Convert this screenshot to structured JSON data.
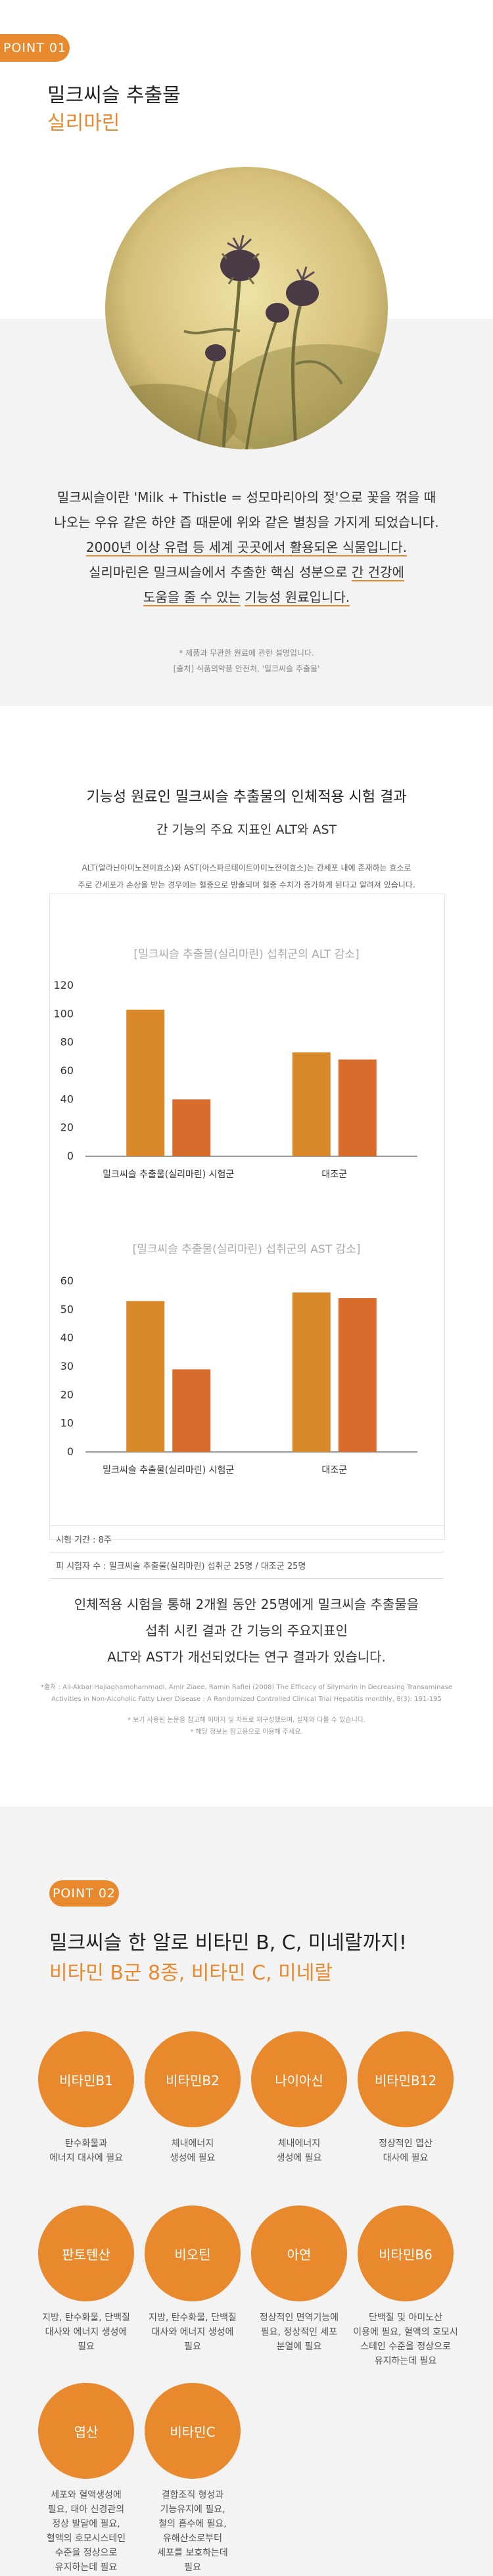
{
  "colors": {
    "accent": "#e8892d",
    "bar_dark": "#d9882a",
    "bar_light": "#d86c2d",
    "section_bg": "#f3f3f3"
  },
  "point1": {
    "badge": "POINT 01",
    "title1": "밀크씨슬 추출물",
    "title2": "실리마린",
    "p1": "밀크씨슬이란 'Milk + Thistle = 성모마리아의 젖'으로 꽃을 꺾을 때",
    "p2": "나오는 우유 같은 하얀 즙 때문에 위와 같은 별칭을 가지게 되었습니다.",
    "p3": "2000년 이상 유럽 등 세계 곳곳에서 활용되온 식물입니다.",
    "p4a": "실리마린은 밀크씨슬에서 추출한 핵심 성분으로",
    "p4b": "간 건강에",
    "p5a": "도움을 줄 수 있는",
    "p5b": "기능성 원료입니다.",
    "note1": "* 제품과 무관한 원료에 관한 설명입니다.",
    "note2": "[출처] 식품의약품 안전처, '밀크씨슬 추출물'"
  },
  "study": {
    "title": "기능성 원료인 밀크씨슬 추출물의 인체적용 시험 결과",
    "subtitle": "간 기능의 주요 지표인 ALT와 AST",
    "desc1": "ALT(알라닌아미노전이효소)와 AST(아스파르테이트아미노전이효소)는 간세포 내에 존재하는 효소로",
    "desc2": "주로 간세포가 손상을 받는 경우에는 혈중으로 방출되며 혈중 수치가 증가하게 된다고 알려져 있습니다.",
    "period": "시험 기간 : 8주",
    "subjects": "피 시험자 수 : 밀크씨슬 추출물(실리마린) 섭취군 25명 / 대조군 25명",
    "r1": "인체적용 시험을 통해 2개월 동안 25명에게 밀크씨슬 추출물을",
    "r2": "섭취 시킨 결과 간 기능의 주요지표인",
    "r3": "ALT와 AST가 개선되었다는 연구 결과가 있습니다.",
    "src1": "*출처 : Ali-Akbar Hajiaghamohammadi, Amir Ziaee, Ramin Rafiei (2008) The Efficacy of Silymarin in Decreasing Transaminase",
    "src2": "Activities in Non-Alcoholic Fatty Liver Disease : A Randomized Controlled Clinical Trial Hepatitis monthly, 8(3): 191-195",
    "src3": "* 보기 사용된 논문을 참고해 이미지 및 차트로 재구성했으며, 실제와 다를 수 있습니다.",
    "src4": "* 해당 정보는 참고용으로 이용해 주세요."
  },
  "chart_data": [
    {
      "type": "bar",
      "title": "[밀크씨슬 추출물(실리마린) 섭취군의 ALT 감소]",
      "categories": [
        "밀크씨슬 추출물(실리마린) 시험군",
        "대조군"
      ],
      "series": [
        {
          "values": [
            103,
            40
          ]
        },
        {
          "values": [
            73,
            68
          ]
        }
      ],
      "ylim": [
        0,
        120
      ],
      "yticks": [
        "0",
        "20",
        "40",
        "60",
        "80",
        "100",
        "120"
      ]
    },
    {
      "type": "bar",
      "title": "[밀크씨슬 추출물(실리마린) 섭취군의 AST 감소]",
      "categories": [
        "밀크씨슬 추출물(실리마린) 시험군",
        "대조군"
      ],
      "series": [
        {
          "values": [
            53,
            29
          ]
        },
        {
          "values": [
            56,
            54
          ]
        }
      ],
      "ylim": [
        0,
        60
      ],
      "yticks": [
        "0",
        "10",
        "20",
        "30",
        "40",
        "50",
        "60"
      ]
    }
  ],
  "point2": {
    "badge": "POINT 02",
    "title1": "밀크씨슬 한 알로 비타민 B, C, 미네랄까지!",
    "title2": "비타민 B군 8종, 비타민 C, 미네랄",
    "items": [
      {
        "name": "비타민B1",
        "desc": [
          "탄수화물과",
          "에너지 대사에 필요"
        ]
      },
      {
        "name": "비타민B2",
        "desc": [
          "체내에너지",
          "생성에 필요"
        ]
      },
      {
        "name": "나이아신",
        "desc": [
          "체내에너지",
          "생성에 필요"
        ]
      },
      {
        "name": "비타민B12",
        "desc": [
          "정상적인 엽산",
          "대사에 필요"
        ]
      },
      {
        "name": "판토텐산",
        "desc": [
          "지방, 탄수화물, 단백질",
          "대사와 에너지 생성에",
          "필요"
        ]
      },
      {
        "name": "비오틴",
        "desc": [
          "지방, 탄수화물, 단백질",
          "대사와 에너지 생성에",
          "필요"
        ]
      },
      {
        "name": "아연",
        "desc": [
          "정상적인 면역기능에",
          "필요, 정상적인 세포",
          "분열에 필요"
        ]
      },
      {
        "name": "비타민B6",
        "desc": [
          "단백질 및 아미노산",
          "이용에 필요, 혈액의 호모시",
          "스테인 수준을 정상으로",
          "유지하는데 필요"
        ]
      },
      {
        "name": "엽산",
        "desc": [
          "세포와 혈액생성에",
          "필요, 태아 신경관의",
          "정상 발달에 필요,",
          "혈액의 호모시스테인",
          "수준을 정상으로",
          "유지하는데 필요"
        ]
      },
      {
        "name": "비타민C",
        "desc": [
          "결합조직 형성과",
          "기능유지에 필요,",
          "철의 흡수에 필요,",
          "유해산소로부터",
          "세포를 보호하는데",
          "필요"
        ]
      }
    ]
  }
}
